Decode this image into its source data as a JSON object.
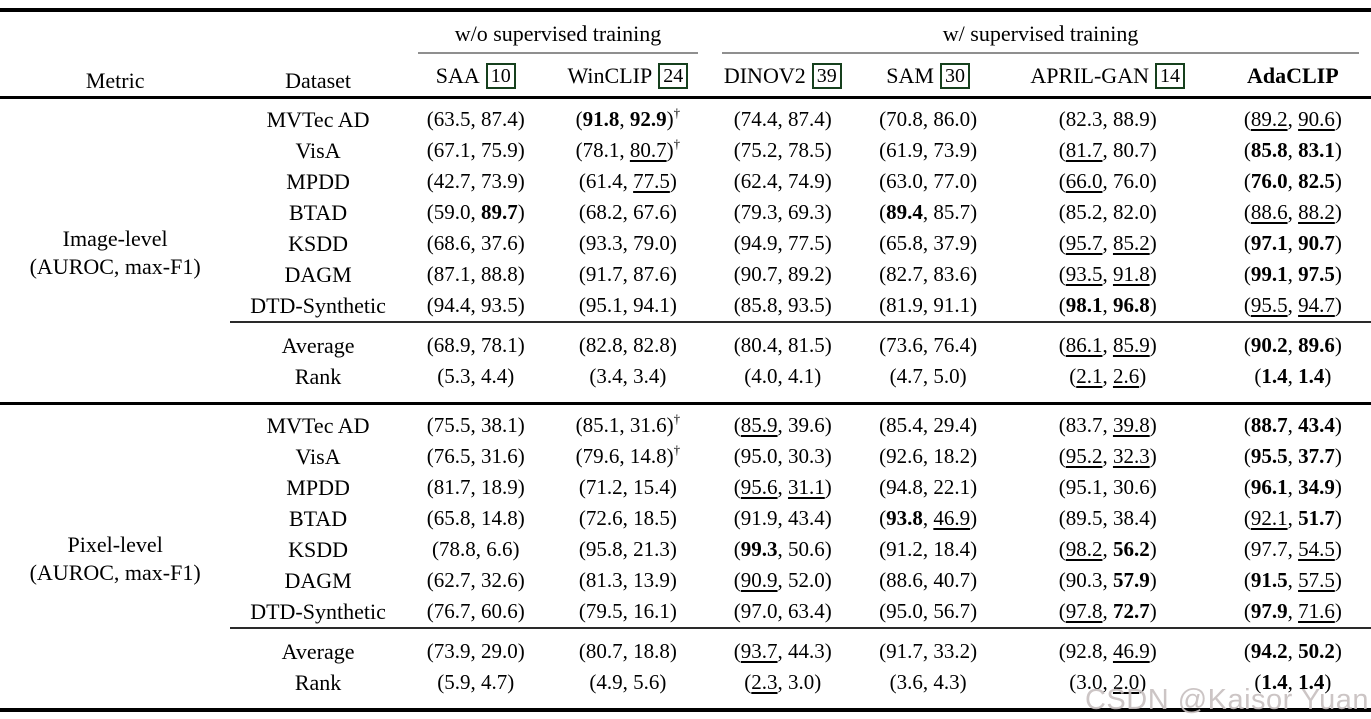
{
  "watermark": "CSDN @Kaisor Yuan",
  "header": {
    "metric": "Metric",
    "dataset": "Dataset",
    "group1": "w/o supervised training",
    "group2": "w/ supervised training",
    "methods": [
      {
        "name": "SAA",
        "cite": "10"
      },
      {
        "name": "WinCLIP",
        "cite": "24"
      },
      {
        "name": "DINOV2",
        "cite": "39"
      },
      {
        "name": "SAM",
        "cite": "30"
      },
      {
        "name": "APRIL-GAN",
        "cite": "14"
      },
      {
        "name": "AdaCLIP",
        "cite": ""
      }
    ]
  },
  "legend": {
    "value_format": "(AUROC, max-F1)",
    "bold_means": "best",
    "underline_means": "second-best",
    "dagger": "†"
  },
  "blocks": [
    {
      "metric_label": [
        "Image-level",
        "(AUROC, max-F1)"
      ],
      "rows": [
        {
          "dataset": "MVTec AD",
          "cells": [
            [
              "63.5",
              "",
              "87.4",
              "",
              0
            ],
            [
              "91.8",
              "b",
              "92.9",
              "b",
              1
            ],
            [
              "74.4",
              "",
              "87.4",
              "",
              0
            ],
            [
              "70.8",
              "",
              "86.0",
              "",
              0
            ],
            [
              "82.3",
              "",
              "88.9",
              "",
              0
            ],
            [
              "89.2",
              "u",
              "90.6",
              "u",
              0
            ]
          ]
        },
        {
          "dataset": "VisA",
          "cells": [
            [
              "67.1",
              "",
              "75.9",
              "",
              0
            ],
            [
              "78.1",
              "",
              "80.7",
              "u",
              1
            ],
            [
              "75.2",
              "",
              "78.5",
              "",
              0
            ],
            [
              "61.9",
              "",
              "73.9",
              "",
              0
            ],
            [
              "81.7",
              "u",
              "80.7",
              "",
              0
            ],
            [
              "85.8",
              "b",
              "83.1",
              "b",
              0
            ]
          ]
        },
        {
          "dataset": "MPDD",
          "cells": [
            [
              "42.7",
              "",
              "73.9",
              "",
              0
            ],
            [
              "61.4",
              "",
              "77.5",
              "u",
              0
            ],
            [
              "62.4",
              "",
              "74.9",
              "",
              0
            ],
            [
              "63.0",
              "",
              "77.0",
              "",
              0
            ],
            [
              "66.0",
              "u",
              "76.0",
              "",
              0
            ],
            [
              "76.0",
              "b",
              "82.5",
              "b",
              0
            ]
          ]
        },
        {
          "dataset": "BTAD",
          "cells": [
            [
              "59.0",
              "",
              "89.7",
              "b",
              0
            ],
            [
              "68.2",
              "",
              "67.6",
              "",
              0
            ],
            [
              "79.3",
              "",
              "69.3",
              "",
              0
            ],
            [
              "89.4",
              "b",
              "85.7",
              "",
              0
            ],
            [
              "85.2",
              "",
              "82.0",
              "",
              0
            ],
            [
              "88.6",
              "u",
              "88.2",
              "u",
              0
            ]
          ]
        },
        {
          "dataset": "KSDD",
          "cells": [
            [
              "68.6",
              "",
              "37.6",
              "",
              0
            ],
            [
              "93.3",
              "",
              "79.0",
              "",
              0
            ],
            [
              "94.9",
              "",
              "77.5",
              "",
              0
            ],
            [
              "65.8",
              "",
              "37.9",
              "",
              0
            ],
            [
              "95.7",
              "u",
              "85.2",
              "u",
              0
            ],
            [
              "97.1",
              "b",
              "90.7",
              "b",
              0
            ]
          ]
        },
        {
          "dataset": "DAGM",
          "cells": [
            [
              "87.1",
              "",
              "88.8",
              "",
              0
            ],
            [
              "91.7",
              "",
              "87.6",
              "",
              0
            ],
            [
              "90.7",
              "",
              "89.2",
              "",
              0
            ],
            [
              "82.7",
              "",
              "83.6",
              "",
              0
            ],
            [
              "93.5",
              "u",
              "91.8",
              "u",
              0
            ],
            [
              "99.1",
              "b",
              "97.5",
              "b",
              0
            ]
          ]
        },
        {
          "dataset": "DTD-Synthetic",
          "cells": [
            [
              "94.4",
              "",
              "93.5",
              "",
              0
            ],
            [
              "95.1",
              "",
              "94.1",
              "",
              0
            ],
            [
              "85.8",
              "",
              "93.5",
              "",
              0
            ],
            [
              "81.9",
              "",
              "91.1",
              "",
              0
            ],
            [
              "98.1",
              "b",
              "96.8",
              "b",
              0
            ],
            [
              "95.5",
              "u",
              "94.7",
              "u",
              0
            ]
          ]
        }
      ],
      "summary": [
        {
          "dataset": "Average",
          "cells": [
            [
              "68.9",
              "",
              "78.1",
              "",
              0
            ],
            [
              "82.8",
              "",
              "82.8",
              "",
              0
            ],
            [
              "80.4",
              "",
              "81.5",
              "",
              0
            ],
            [
              "73.6",
              "",
              "76.4",
              "",
              0
            ],
            [
              "86.1",
              "u",
              "85.9",
              "u",
              0
            ],
            [
              "90.2",
              "b",
              "89.6",
              "b",
              0
            ]
          ]
        },
        {
          "dataset": "Rank",
          "cells": [
            [
              "5.3",
              "",
              "4.4",
              "",
              0
            ],
            [
              "3.4",
              "",
              "3.4",
              "",
              0
            ],
            [
              "4.0",
              "",
              "4.1",
              "",
              0
            ],
            [
              "4.7",
              "",
              "5.0",
              "",
              0
            ],
            [
              "2.1",
              "u",
              "2.6",
              "u",
              0
            ],
            [
              "1.4",
              "b",
              "1.4",
              "b",
              0
            ]
          ]
        }
      ]
    },
    {
      "metric_label": [
        "Pixel-level",
        "(AUROC, max-F1)"
      ],
      "rows": [
        {
          "dataset": "MVTec AD",
          "cells": [
            [
              "75.5",
              "",
              "38.1",
              "",
              0
            ],
            [
              "85.1",
              "",
              "31.6",
              "",
              1
            ],
            [
              "85.9",
              "u",
              "39.6",
              "",
              0
            ],
            [
              "85.4",
              "",
              "29.4",
              "",
              0
            ],
            [
              "83.7",
              "",
              "39.8",
              "u",
              0
            ],
            [
              "88.7",
              "b",
              "43.4",
              "b",
              0
            ]
          ]
        },
        {
          "dataset": "VisA",
          "cells": [
            [
              "76.5",
              "",
              "31.6",
              "",
              0
            ],
            [
              "79.6",
              "",
              "14.8",
              "",
              1
            ],
            [
              "95.0",
              "",
              "30.3",
              "",
              0
            ],
            [
              "92.6",
              "",
              "18.2",
              "",
              0
            ],
            [
              "95.2",
              "u",
              "32.3",
              "u",
              0
            ],
            [
              "95.5",
              "b",
              "37.7",
              "b",
              0
            ]
          ]
        },
        {
          "dataset": "MPDD",
          "cells": [
            [
              "81.7",
              "",
              "18.9",
              "",
              0
            ],
            [
              "71.2",
              "",
              "15.4",
              "",
              0
            ],
            [
              "95.6",
              "u",
              "31.1",
              "u",
              0
            ],
            [
              "94.8",
              "",
              "22.1",
              "",
              0
            ],
            [
              "95.1",
              "",
              "30.6",
              "",
              0
            ],
            [
              "96.1",
              "b",
              "34.9",
              "b",
              0
            ]
          ]
        },
        {
          "dataset": "BTAD",
          "cells": [
            [
              "65.8",
              "",
              "14.8",
              "",
              0
            ],
            [
              "72.6",
              "",
              "18.5",
              "",
              0
            ],
            [
              "91.9",
              "",
              "43.4",
              "",
              0
            ],
            [
              "93.8",
              "b",
              "46.9",
              "u",
              0
            ],
            [
              "89.5",
              "",
              "38.4",
              "",
              0
            ],
            [
              "92.1",
              "u",
              "51.7",
              "b",
              0
            ]
          ]
        },
        {
          "dataset": "KSDD",
          "cells": [
            [
              "78.8",
              "",
              "6.6",
              "",
              0
            ],
            [
              "95.8",
              "",
              "21.3",
              "",
              0
            ],
            [
              "99.3",
              "b",
              "50.6",
              "",
              0
            ],
            [
              "91.2",
              "",
              "18.4",
              "",
              0
            ],
            [
              "98.2",
              "u",
              "56.2",
              "b",
              0
            ],
            [
              "97.7",
              "",
              "54.5",
              "u",
              0
            ]
          ]
        },
        {
          "dataset": "DAGM",
          "cells": [
            [
              "62.7",
              "",
              "32.6",
              "",
              0
            ],
            [
              "81.3",
              "",
              "13.9",
              "",
              0
            ],
            [
              "90.9",
              "u",
              "52.0",
              "",
              0
            ],
            [
              "88.6",
              "",
              "40.7",
              "",
              0
            ],
            [
              "90.3",
              "",
              "57.9",
              "b",
              0
            ],
            [
              "91.5",
              "b",
              "57.5",
              "u",
              0
            ]
          ]
        },
        {
          "dataset": "DTD-Synthetic",
          "cells": [
            [
              "76.7",
              "",
              "60.6",
              "",
              0
            ],
            [
              "79.5",
              "",
              "16.1",
              "",
              0
            ],
            [
              "97.0",
              "",
              "63.4",
              "",
              0
            ],
            [
              "95.0",
              "",
              "56.7",
              "",
              0
            ],
            [
              "97.8",
              "u",
              "72.7",
              "b",
              0
            ],
            [
              "97.9",
              "b",
              "71.6",
              "u",
              0
            ]
          ]
        }
      ],
      "summary": [
        {
          "dataset": "Average",
          "cells": [
            [
              "73.9",
              "",
              "29.0",
              "",
              0
            ],
            [
              "80.7",
              "",
              "18.8",
              "",
              0
            ],
            [
              "93.7",
              "u",
              "44.3",
              "",
              0
            ],
            [
              "91.7",
              "",
              "33.2",
              "",
              0
            ],
            [
              "92.8",
              "",
              "46.9",
              "u",
              0
            ],
            [
              "94.2",
              "b",
              "50.2",
              "b",
              0
            ]
          ]
        },
        {
          "dataset": "Rank",
          "cells": [
            [
              "5.9",
              "",
              "4.7",
              "",
              0
            ],
            [
              "4.9",
              "",
              "5.6",
              "",
              0
            ],
            [
              "2.3",
              "u",
              "3.0",
              "",
              0
            ],
            [
              "3.6",
              "",
              "4.3",
              "",
              0
            ],
            [
              "3.0",
              "",
              "2.0",
              "u",
              0
            ],
            [
              "1.4",
              "b",
              "1.4",
              "b",
              0
            ]
          ]
        }
      ]
    }
  ]
}
